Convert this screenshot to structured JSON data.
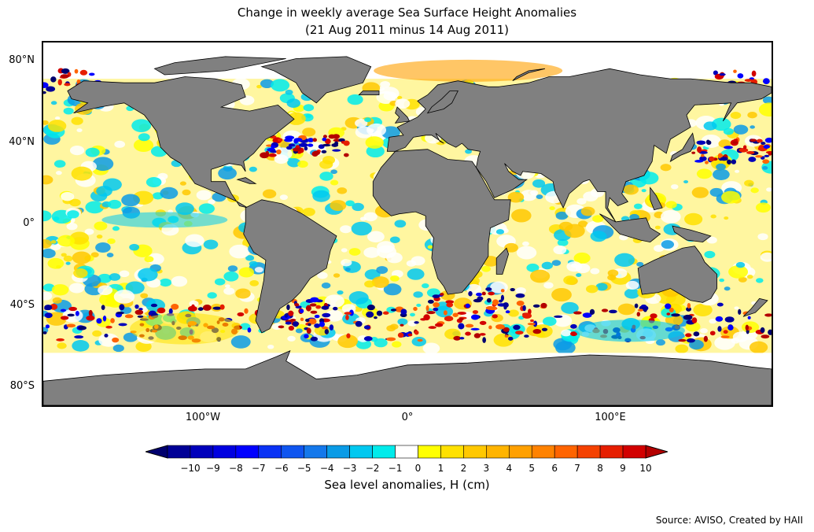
{
  "title": {
    "line1": "Change in weekly average Sea Surface Height Anomalies",
    "line2": "(21 Aug 2011 minus 14 Aug 2011)"
  },
  "map": {
    "lat_ticks": [
      "80°N",
      "40°N",
      "0°",
      "40°S",
      "80°S"
    ],
    "lon_ticks": [
      "100°W",
      "0°",
      "100°E"
    ],
    "land_color": "#808080",
    "ocean_nodata_color": "#ffffff",
    "extent": {
      "lon": [
        -180,
        180
      ],
      "lat": [
        -90,
        90
      ]
    }
  },
  "colorbar": {
    "ticks": [
      "−10",
      "−9",
      "−8",
      "−7",
      "−6",
      "−5",
      "−4",
      "−3",
      "−2",
      "−1",
      "0",
      "1",
      "2",
      "3",
      "4",
      "5",
      "6",
      "7",
      "8",
      "9",
      "10"
    ],
    "label": "Sea level anomalies, H (cm)",
    "colors": [
      "#00006e",
      "#000096",
      "#0000bb",
      "#0000e0",
      "#0000ff",
      "#0a32f5",
      "#0f55f0",
      "#1478eb",
      "#0a9be6",
      "#00c8f0",
      "#00ebeb",
      "#ffffff",
      "#ffff00",
      "#ffe100",
      "#ffc800",
      "#ffb400",
      "#ffa000",
      "#ff8200",
      "#ff6400",
      "#f54100",
      "#e61e00",
      "#d20000",
      "#b40000"
    ],
    "extend_low_color": "#00006e",
    "extend_high_color": "#b40000"
  },
  "source": "Source: AVISO, Created by HAII"
}
